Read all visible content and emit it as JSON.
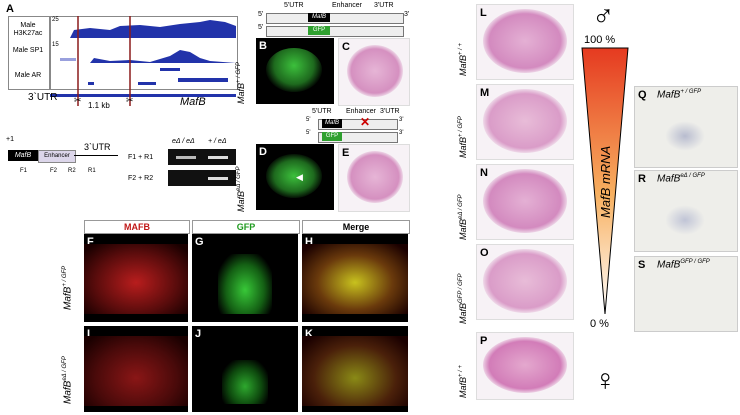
{
  "panel_letters": {
    "A": "A",
    "B": "B",
    "C": "C",
    "D": "D",
    "E": "E",
    "F": "F",
    "G": "G",
    "H": "H",
    "I": "I",
    "J": "J",
    "K": "K",
    "L": "L",
    "M": "M",
    "N": "N",
    "O": "O",
    "P": "P",
    "Q": "Q",
    "R": "R",
    "S": "S"
  },
  "panel_a": {
    "tracks": [
      {
        "label": "Male H3K27ac",
        "max": "25"
      },
      {
        "label": "Male SP1",
        "max": "15"
      },
      {
        "label": "Male AR",
        "max": ""
      }
    ],
    "utr_label": "3`UTR",
    "distance_label": "1.1 kb",
    "gene_label": "MafB"
  },
  "construct_diagram": {
    "start_label": "+1",
    "gene_box": "MafB",
    "enhancer_box": "Enhancer",
    "utr_label": "3`UTR",
    "primers": [
      "F1",
      "F2",
      "R2",
      "R1"
    ]
  },
  "gel": {
    "col_headers": [
      "eΔ / eΔ",
      "+ / eΔ"
    ],
    "row_labels": [
      "F1 + R1",
      "F2 + R2"
    ]
  },
  "allele_top": {
    "five": "5'",
    "three": "3'",
    "utr5": "5'UTR",
    "enhancer": "Enhancer",
    "utr3": "3'UTR",
    "gene_box": "MafB",
    "gfp_box": "GFP"
  },
  "allele_mid": {
    "five": "5'",
    "three": "3'",
    "utr5": "5'UTR",
    "enhancer": "Enhancer",
    "utr3": "3'UTR",
    "gene_box": "MafB",
    "gfp_box": "GFP"
  },
  "genotypes": {
    "B": {
      "gene": "MafB",
      "sup": "+ / GFP"
    },
    "D": {
      "gene": "MafB",
      "sup": "eΔ / GFP"
    },
    "F": {
      "gene": "MafB",
      "sup": "+ / GFP"
    },
    "I": {
      "gene": "MafB",
      "sup": "eΔ / GFP"
    },
    "L": {
      "gene": "MafB",
      "sup": "+ / +"
    },
    "M": {
      "gene": "MafB",
      "sup": "+ / GFP"
    },
    "N": {
      "gene": "MafB",
      "sup": "eΔ / GFP"
    },
    "O": {
      "gene": "MafB",
      "sup": "GFP / GFP"
    },
    "P": {
      "gene": "MafB",
      "sup": "+ / +"
    },
    "Q": {
      "gene": "MafB",
      "sup": "+ / GFP"
    },
    "R": {
      "gene": "MafB",
      "sup": "eΔ / GFP"
    },
    "S": {
      "gene": "MafB",
      "sup": "GFP / GFP"
    }
  },
  "channel_headers": {
    "mafb": "MAFB",
    "gfp": "GFP",
    "merge": "Merge"
  },
  "gradient": {
    "top_pct": "100 %",
    "bottom_pct": "0 %",
    "axis_label": "MafB mRNA",
    "male": "♂",
    "female": "♀"
  },
  "colors": {
    "mafb_red": "#d21f1f",
    "gfp_green": "#27b427",
    "merge_yellow": "#c8c21e",
    "gradient_top": "#e53a20",
    "gradient_bottom": "#ffffff"
  }
}
